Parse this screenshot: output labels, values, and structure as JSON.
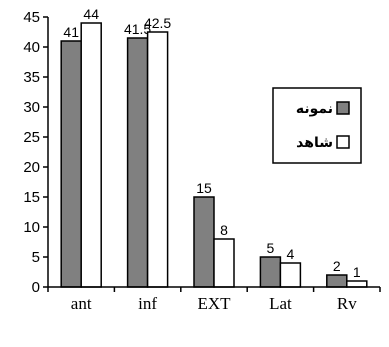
{
  "chart_data": {
    "type": "bar",
    "categories": [
      "ant",
      "inf",
      "EXT",
      "Lat",
      "Rv"
    ],
    "series": [
      {
        "name": "نمونه",
        "values": [
          41,
          41.5,
          15,
          5,
          2
        ],
        "color": "#808080"
      },
      {
        "name": "شاهد",
        "values": [
          44,
          42.5,
          8,
          4,
          1
        ],
        "color": "#ffffff"
      }
    ],
    "data_labels": [
      [
        "41",
        "41.5",
        "15",
        "5",
        "2"
      ],
      [
        "44",
        "42.5",
        "8",
        "4",
        "1"
      ]
    ],
    "y_ticks": [
      0,
      5,
      10,
      15,
      20,
      25,
      30,
      35,
      40,
      45
    ],
    "ylim": [
      0,
      45
    ],
    "title": "",
    "xlabel": "",
    "ylabel": "",
    "grid": false,
    "legend_position": "right"
  }
}
